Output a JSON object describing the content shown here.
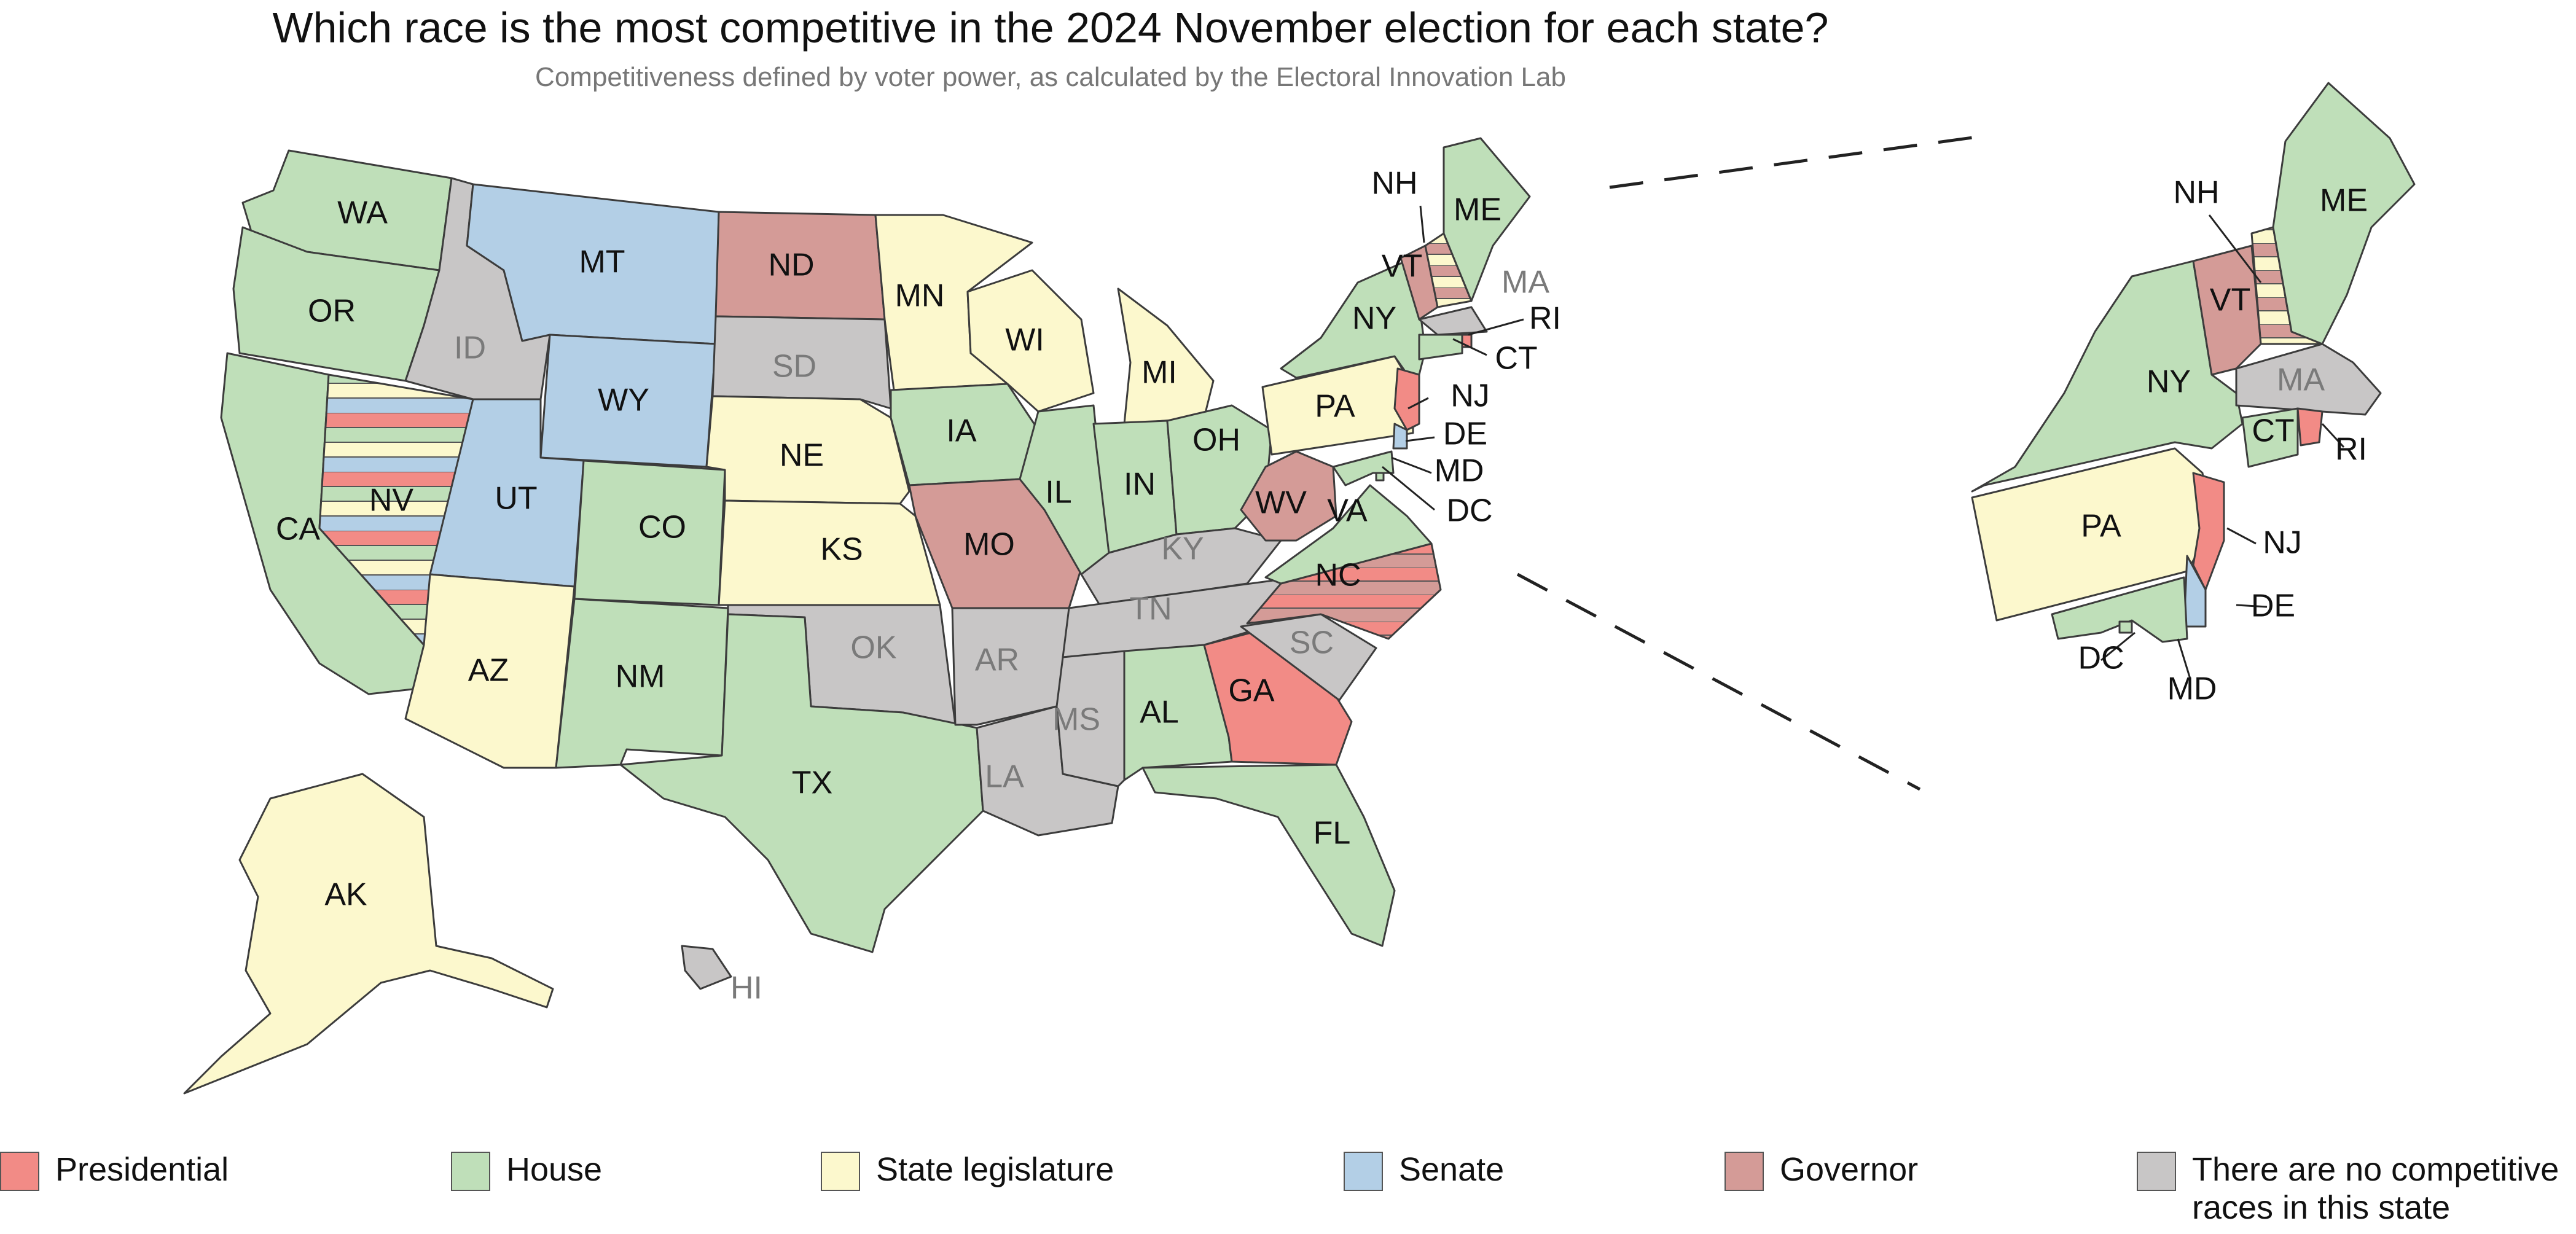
{
  "title": "Which race is the most competitive in the 2024 November election for each state?",
  "subtitle": "Competitiveness defined by voter power, as calculated by the Electoral Innovation Lab",
  "colors": {
    "presidential": "#f28b86",
    "house": "#bfdfb9",
    "state_legislature": "#fcf8cd",
    "senate": "#b3cfe6",
    "governor": "#d49b97",
    "none": "#c8c6c6"
  },
  "legend": [
    {
      "key": "presidential",
      "label": "Presidential"
    },
    {
      "key": "house",
      "label": "House"
    },
    {
      "key": "state_legislature",
      "label": "State legislature"
    },
    {
      "key": "senate",
      "label": "Senate"
    },
    {
      "key": "governor",
      "label": "Governor"
    },
    {
      "key": "none",
      "label": "There are no competitive races in this state"
    }
  ],
  "states": {
    "WA": {
      "label": "WA",
      "race": "house"
    },
    "OR": {
      "label": "OR",
      "race": "house"
    },
    "CA": {
      "label": "CA",
      "race": "house"
    },
    "NV": {
      "label": "NV",
      "race": "mixed",
      "stripes": [
        "presidential",
        "house",
        "state_legislature",
        "senate"
      ]
    },
    "ID": {
      "label": "ID",
      "race": "none"
    },
    "MT": {
      "label": "MT",
      "race": "senate"
    },
    "WY": {
      "label": "WY",
      "race": "senate"
    },
    "UT": {
      "label": "UT",
      "race": "senate"
    },
    "AZ": {
      "label": "AZ",
      "race": "state_legislature"
    },
    "CO": {
      "label": "CO",
      "race": "house"
    },
    "NM": {
      "label": "NM",
      "race": "house"
    },
    "ND": {
      "label": "ND",
      "race": "governor"
    },
    "SD": {
      "label": "SD",
      "race": "none"
    },
    "NE": {
      "label": "NE",
      "race": "state_legislature"
    },
    "KS": {
      "label": "KS",
      "race": "state_legislature"
    },
    "OK": {
      "label": "OK",
      "race": "none"
    },
    "TX": {
      "label": "TX",
      "race": "house"
    },
    "MN": {
      "label": "MN",
      "race": "state_legislature"
    },
    "IA": {
      "label": "IA",
      "race": "house"
    },
    "MO": {
      "label": "MO",
      "race": "governor"
    },
    "AR": {
      "label": "AR",
      "race": "none"
    },
    "LA": {
      "label": "LA",
      "race": "none"
    },
    "WI": {
      "label": "WI",
      "race": "state_legislature"
    },
    "IL": {
      "label": "IL",
      "race": "house"
    },
    "MI": {
      "label": "MI",
      "race": "state_legislature"
    },
    "IN": {
      "label": "IN",
      "race": "house"
    },
    "OH": {
      "label": "OH",
      "race": "house"
    },
    "KY": {
      "label": "KY",
      "race": "none"
    },
    "TN": {
      "label": "TN",
      "race": "none"
    },
    "MS": {
      "label": "MS",
      "race": "none"
    },
    "AL": {
      "label": "AL",
      "race": "house"
    },
    "GA": {
      "label": "GA",
      "race": "presidential"
    },
    "FL": {
      "label": "FL",
      "race": "house"
    },
    "SC": {
      "label": "SC",
      "race": "none"
    },
    "NC": {
      "label": "NC",
      "race": "mixed",
      "stripes": [
        "presidential",
        "governor"
      ]
    },
    "VA": {
      "label": "VA",
      "race": "house"
    },
    "WV": {
      "label": "WV",
      "race": "governor"
    },
    "PA": {
      "label": "PA",
      "race": "state_legislature"
    },
    "NY": {
      "label": "NY",
      "race": "house"
    },
    "VT": {
      "label": "VT",
      "race": "governor"
    },
    "NH": {
      "label": "NH",
      "race": "mixed",
      "stripes": [
        "governor",
        "state_legislature"
      ]
    },
    "ME": {
      "label": "ME",
      "race": "house"
    },
    "MA": {
      "label": "MA",
      "race": "none"
    },
    "RI": {
      "label": "RI",
      "race": "presidential"
    },
    "CT": {
      "label": "CT",
      "race": "house"
    },
    "NJ": {
      "label": "NJ",
      "race": "presidential"
    },
    "DE": {
      "label": "DE",
      "race": "senate"
    },
    "MD": {
      "label": "MD",
      "race": "house"
    },
    "DC": {
      "label": "DC",
      "race": "house"
    },
    "AK": {
      "label": "AK",
      "race": "state_legislature"
    },
    "HI": {
      "label": "HI",
      "race": "none"
    }
  }
}
